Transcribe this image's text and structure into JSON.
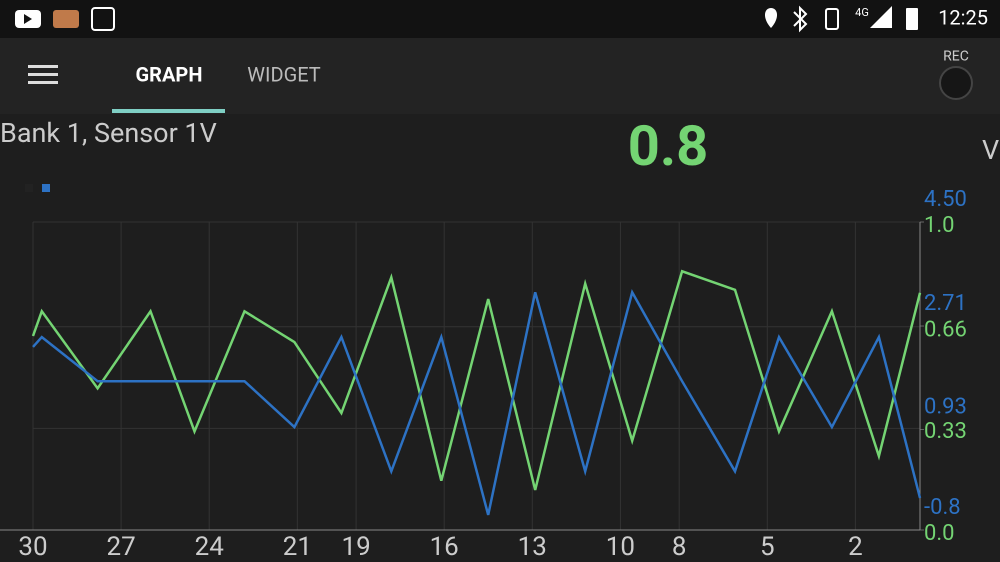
{
  "status_bar": {
    "time": "12:25",
    "network": "4G"
  },
  "app_bar": {
    "tabs": [
      "GRAPH",
      "WIDGET"
    ],
    "active_tab": 0,
    "rec_label": "REC"
  },
  "sensor": {
    "name": "Bank 1, Sensor 1V",
    "current_value": 0.8,
    "unit": "V"
  },
  "chart_data": {
    "type": "line",
    "x": [
      30.0,
      29.7,
      27.8,
      26.0,
      24.5,
      22.8,
      21.1,
      19.5,
      17.8,
      16.1,
      14.5,
      12.9,
      11.2,
      9.6,
      7.9,
      6.1,
      4.6,
      2.8,
      1.2,
      -0.2
    ],
    "xlim": [
      30,
      -0.2
    ],
    "xticks": [
      30,
      27,
      24,
      21,
      19,
      16,
      13,
      10,
      8,
      5,
      2
    ],
    "ylim": [
      0,
      1
    ],
    "yticks": [
      {
        "value": 0,
        "label": "0.0"
      },
      0.33,
      0.66,
      {
        "value": 1,
        "label": "1.0"
      }
    ],
    "y2lim": [
      -0.8,
      4.5
    ],
    "y2ticks": [
      -0.8,
      0.93,
      2.71,
      {
        "value": 4.5,
        "label": "4.50"
      }
    ],
    "grid": true,
    "series": [
      {
        "color": "#74d473",
        "values": [
          0.63,
          0.71,
          0.46,
          0.71,
          0.32,
          0.71,
          0.61,
          0.38,
          0.82,
          0.16,
          0.75,
          0.13,
          0.8,
          0.29,
          0.84,
          0.78,
          0.32,
          0.71,
          0.24,
          0.77
        ]
      },
      {
        "color": "#2d72c4",
        "axis": "y2",
        "values": [
          2.35,
          2.52,
          1.76,
          1.76,
          1.76,
          1.76,
          0.97,
          2.52,
          0.21,
          2.52,
          -0.54,
          3.29,
          0.21,
          3.29,
          1.76,
          0.21,
          2.52,
          0.97,
          2.52,
          -0.25
        ]
      }
    ]
  }
}
